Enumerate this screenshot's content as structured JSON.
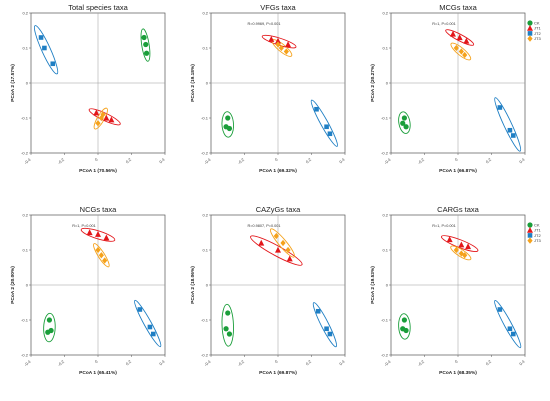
{
  "figure": {
    "group_legend": [
      {
        "label": "CK",
        "color": "#1a9e3a",
        "marker": "circle"
      },
      {
        "label": "JT1",
        "color": "#e3171b",
        "marker": "triangle"
      },
      {
        "label": "JT2",
        "color": "#1f7fc4",
        "marker": "square"
      },
      {
        "label": "JT3",
        "color": "#f5a21b",
        "marker": "diamond"
      }
    ]
  },
  "chart_data": [
    {
      "type": "scatter",
      "title": "Total species taxa",
      "xlabel": "PCoA 1 (70.56%)",
      "ylabel": "PCoA 2 (17.57%)",
      "stat": "",
      "xlim": [
        -0.4,
        0.4
      ],
      "ylim": [
        -0.2,
        0.2
      ],
      "xticks": [
        "-0.4",
        "-0.2",
        "0",
        "0.2",
        "0.4"
      ],
      "yticks": [
        "-0.2",
        "-0.1",
        "0",
        "0.1",
        "0.2"
      ],
      "legend": "none",
      "series": [
        {
          "name": "CK",
          "points": [
            [
              0.275,
              0.13
            ],
            [
              0.285,
              0.11
            ],
            [
              0.29,
              0.085
            ]
          ]
        },
        {
          "name": "JT1",
          "points": [
            [
              -0.01,
              -0.085
            ],
            [
              0.05,
              -0.1
            ],
            [
              0.08,
              -0.105
            ]
          ]
        },
        {
          "name": "JT2",
          "points": [
            [
              -0.34,
              0.13
            ],
            [
              -0.32,
              0.1
            ],
            [
              -0.27,
              0.055
            ]
          ]
        },
        {
          "name": "JT3",
          "points": [
            [
              0.0,
              -0.115
            ],
            [
              0.02,
              -0.1
            ],
            [
              0.03,
              -0.09
            ]
          ]
        }
      ]
    },
    {
      "type": "scatter",
      "title": "VFGs taxa",
      "xlabel": "PCoA 1 (69.32%)",
      "ylabel": "PCoA 2 (19.18%)",
      "stat": "R=0.9969, P=0.001",
      "xlim": [
        -0.4,
        0.4
      ],
      "ylim": [
        -0.2,
        0.2
      ],
      "xticks": [
        "-0.4",
        "-0.2",
        "0",
        "0.2",
        "0.4"
      ],
      "yticks": [
        "-0.2",
        "-0.1",
        "0",
        "0.1",
        "0.2"
      ],
      "legend": "none",
      "series": [
        {
          "name": "CK",
          "points": [
            [
              -0.3,
              -0.1
            ],
            [
              -0.31,
              -0.125
            ],
            [
              -0.29,
              -0.13
            ]
          ]
        },
        {
          "name": "JT1",
          "points": [
            [
              -0.04,
              0.125
            ],
            [
              0.0,
              0.12
            ],
            [
              0.06,
              0.11
            ]
          ]
        },
        {
          "name": "JT2",
          "points": [
            [
              0.23,
              -0.075
            ],
            [
              0.29,
              -0.125
            ],
            [
              0.31,
              -0.145
            ]
          ]
        },
        {
          "name": "JT3",
          "points": [
            [
              0.0,
              0.11
            ],
            [
              0.02,
              0.1
            ],
            [
              0.05,
              0.09
            ]
          ]
        }
      ]
    },
    {
      "type": "scatter",
      "title": "MCGs taxa",
      "xlabel": "PCoA 1 (66.87%)",
      "ylabel": "PCoA 2 (20.27%)",
      "stat": "R=1, P=0.001",
      "xlim": [
        -0.4,
        0.4
      ],
      "ylim": [
        -0.2,
        0.2
      ],
      "xticks": [
        "-0.4",
        "-0.2",
        "0",
        "0.2",
        "0.4"
      ],
      "yticks": [
        "-0.2",
        "-0.1",
        "0",
        "0.1",
        "0.2"
      ],
      "legend": "right",
      "series": [
        {
          "name": "CK",
          "points": [
            [
              -0.32,
              -0.1
            ],
            [
              -0.33,
              -0.115
            ],
            [
              -0.31,
              -0.125
            ]
          ]
        },
        {
          "name": "JT1",
          "points": [
            [
              -0.03,
              0.14
            ],
            [
              0.01,
              0.13
            ],
            [
              0.05,
              0.12
            ]
          ]
        },
        {
          "name": "JT2",
          "points": [
            [
              0.25,
              -0.07
            ],
            [
              0.31,
              -0.135
            ],
            [
              0.33,
              -0.15
            ]
          ]
        },
        {
          "name": "JT3",
          "points": [
            [
              -0.01,
              0.1
            ],
            [
              0.02,
              0.09
            ],
            [
              0.04,
              0.08
            ]
          ]
        }
      ]
    },
    {
      "type": "scatter",
      "title": "NCGs taxa",
      "xlabel": "PCoA 1 (65.41%)",
      "ylabel": "PCoA 2 (20.00%)",
      "stat": "R=1, P=0.001",
      "xlim": [
        -0.4,
        0.4
      ],
      "ylim": [
        -0.2,
        0.2
      ],
      "xticks": [
        "-0.4",
        "-0.2",
        "0",
        "0.2",
        "0.4"
      ],
      "yticks": [
        "-0.2",
        "-0.1",
        "0",
        "0.1",
        "0.2"
      ],
      "legend": "none",
      "series": [
        {
          "name": "CK",
          "points": [
            [
              -0.29,
              -0.1
            ],
            [
              -0.3,
              -0.135
            ],
            [
              -0.28,
              -0.13
            ]
          ]
        },
        {
          "name": "JT1",
          "points": [
            [
              -0.05,
              0.15
            ],
            [
              0.0,
              0.145
            ],
            [
              0.05,
              0.135
            ]
          ]
        },
        {
          "name": "JT2",
          "points": [
            [
              0.25,
              -0.07
            ],
            [
              0.31,
              -0.12
            ],
            [
              0.33,
              -0.14
            ]
          ]
        },
        {
          "name": "JT3",
          "points": [
            [
              0.0,
              0.1
            ],
            [
              0.02,
              0.085
            ],
            [
              0.04,
              0.07
            ]
          ]
        }
      ]
    },
    {
      "type": "scatter",
      "title": "CAZyGs taxa",
      "xlabel": "PCoA 1 (69.87%)",
      "ylabel": "PCoA 2 (18.06%)",
      "stat": "R=0.9807, P=0.001",
      "xlim": [
        -0.4,
        0.4
      ],
      "ylim": [
        -0.2,
        0.2
      ],
      "xticks": [
        "-0.4",
        "-0.2",
        "0",
        "0.2",
        "0.4"
      ],
      "yticks": [
        "-0.2",
        "-0.1",
        "0",
        "0.1",
        "0.2"
      ],
      "legend": "none",
      "series": [
        {
          "name": "CK",
          "points": [
            [
              -0.3,
              -0.08
            ],
            [
              -0.31,
              -0.125
            ],
            [
              -0.29,
              -0.14
            ]
          ]
        },
        {
          "name": "JT1",
          "points": [
            [
              -0.1,
              0.12
            ],
            [
              0.0,
              0.1
            ],
            [
              0.07,
              0.075
            ]
          ]
        },
        {
          "name": "JT2",
          "points": [
            [
              0.24,
              -0.075
            ],
            [
              0.29,
              -0.125
            ],
            [
              0.31,
              -0.14
            ]
          ]
        },
        {
          "name": "JT3",
          "points": [
            [
              -0.01,
              0.14
            ],
            [
              0.03,
              0.12
            ],
            [
              0.06,
              0.1
            ]
          ]
        }
      ]
    },
    {
      "type": "scatter",
      "title": "CARGs taxa",
      "xlabel": "PCoA 1 (68.35%)",
      "ylabel": "PCoA 2 (19.53%)",
      "stat": "R=1, P=0.001",
      "xlim": [
        -0.4,
        0.4
      ],
      "ylim": [
        -0.2,
        0.2
      ],
      "xticks": [
        "-0.4",
        "-0.2",
        "0",
        "0.2",
        "0.4"
      ],
      "yticks": [
        "-0.2",
        "-0.1",
        "0",
        "0.1",
        "0.2"
      ],
      "legend": "right",
      "series": [
        {
          "name": "CK",
          "points": [
            [
              -0.32,
              -0.1
            ],
            [
              -0.33,
              -0.125
            ],
            [
              -0.31,
              -0.13
            ]
          ]
        },
        {
          "name": "JT1",
          "points": [
            [
              -0.05,
              0.13
            ],
            [
              0.02,
              0.115
            ],
            [
              0.06,
              0.11
            ]
          ]
        },
        {
          "name": "JT2",
          "points": [
            [
              0.25,
              -0.07
            ],
            [
              0.31,
              -0.125
            ],
            [
              0.33,
              -0.14
            ]
          ]
        },
        {
          "name": "JT3",
          "points": [
            [
              -0.01,
              0.1
            ],
            [
              0.02,
              0.09
            ],
            [
              0.04,
              0.085
            ]
          ]
        }
      ]
    }
  ]
}
